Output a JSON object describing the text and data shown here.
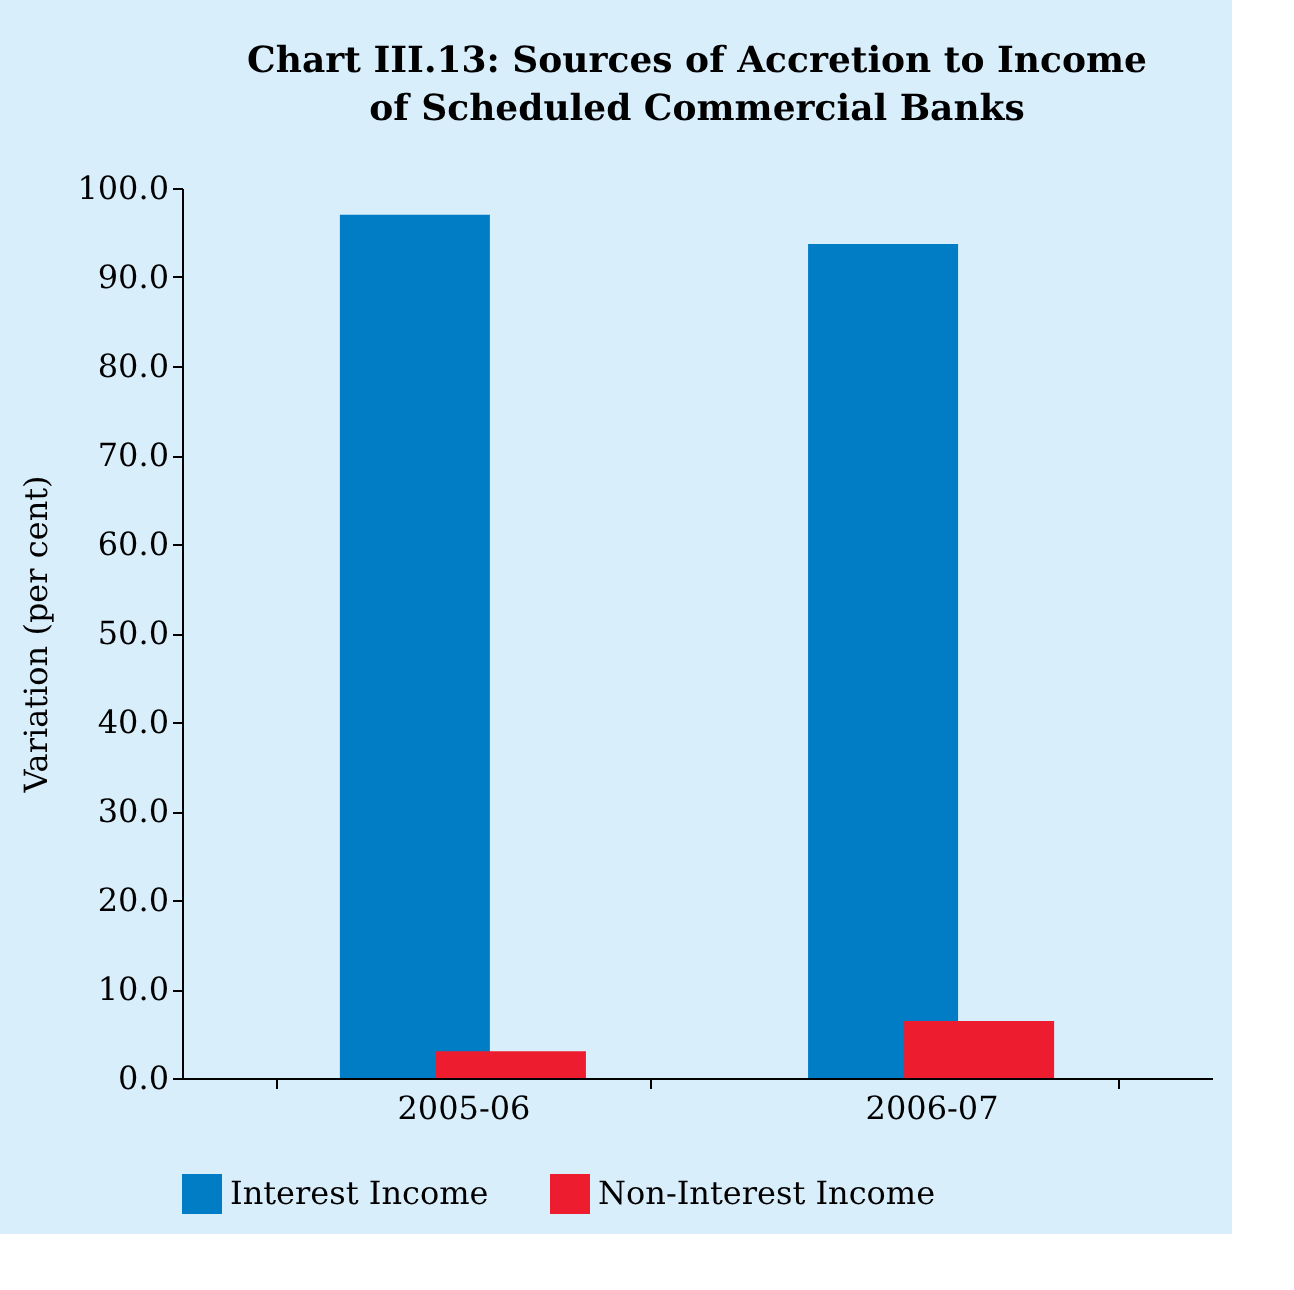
{
  "chart_data": {
    "type": "bar",
    "title": "Chart III.13: Sources of Accretion to Income of Scheduled Commercial Banks",
    "ylabel": "Variation (per cent)",
    "categories": [
      "2005-06",
      "2006-07"
    ],
    "series": [
      {
        "name": "Interest Income",
        "color": "#007dc5",
        "values": [
          97.0,
          93.7
        ]
      },
      {
        "name": "Non-Interest Income",
        "color": "#ed1c2e",
        "values": [
          3.0,
          6.4
        ]
      }
    ],
    "ylim": [
      0,
      100
    ],
    "yticks": [
      {
        "value": 0,
        "label": "0.0"
      },
      {
        "value": 10,
        "label": "10.0"
      },
      {
        "value": 20,
        "label": "20.0"
      },
      {
        "value": 30,
        "label": "30.0"
      },
      {
        "value": 40,
        "label": "40.0"
      },
      {
        "value": 50,
        "label": "50.0"
      },
      {
        "value": 60,
        "label": "60.0"
      },
      {
        "value": 70,
        "label": "70.0"
      },
      {
        "value": 80,
        "label": "80.0"
      },
      {
        "value": 90,
        "label": "90.0"
      },
      {
        "value": 100,
        "label": "100.0"
      }
    ],
    "grid": false,
    "legend": "bottom"
  }
}
